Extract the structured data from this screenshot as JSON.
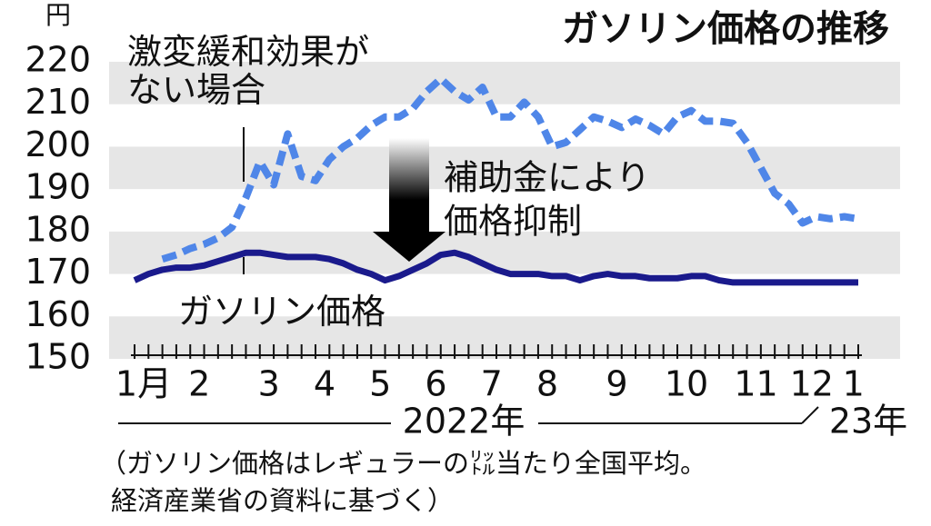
{
  "chart_data": {
    "type": "line",
    "title": "ガソリン価格の推移",
    "y_unit": "円",
    "categories": [
      "1月",
      null,
      null,
      null,
      "2",
      null,
      null,
      null,
      null,
      "3",
      null,
      null,
      null,
      "4",
      null,
      null,
      null,
      "5",
      null,
      null,
      null,
      "6",
      null,
      null,
      null,
      "7",
      null,
      null,
      null,
      "8",
      null,
      null,
      null,
      null,
      "9",
      null,
      null,
      null,
      null,
      "10",
      null,
      null,
      null,
      null,
      "11",
      null,
      null,
      null,
      "12",
      null,
      null,
      "1",
      null
    ],
    "series": [
      {
        "name": "激変緩和効果がない場合",
        "color": "#4f86e8",
        "style": "dashed",
        "values": [
          null,
          null,
          173.5,
          174.5,
          176,
          177,
          178.5,
          181,
          188,
          196.5,
          191,
          203,
          193,
          192,
          197,
          200,
          202,
          205,
          207,
          207,
          209,
          213,
          216,
          213,
          211,
          214,
          207,
          207,
          210.5,
          207,
          200,
          201,
          204,
          207,
          206,
          204.5,
          206.5,
          205,
          203,
          207,
          208.5,
          206,
          206,
          205.5,
          201,
          195,
          189,
          186.5,
          182,
          183.5,
          183,
          183.5,
          183
        ]
      },
      {
        "name": "ガソリン価格",
        "color": "#1a1a8c",
        "style": "solid",
        "values": [
          168.5,
          170,
          171,
          171.5,
          171.5,
          172,
          173,
          174,
          175,
          175,
          174.5,
          174,
          174,
          174,
          173.5,
          172.5,
          171,
          170,
          168.5,
          169.5,
          171,
          172.5,
          174.5,
          175,
          174,
          172.5,
          171,
          170,
          170,
          170,
          169.5,
          169.5,
          168.5,
          169.5,
          170,
          169.5,
          169.5,
          169,
          169,
          169,
          169.5,
          169.5,
          168.5,
          168,
          168,
          168,
          168,
          168,
          168,
          168,
          168,
          168,
          168
        ]
      }
    ],
    "ylim": [
      150,
      220
    ],
    "yticks": [
      150,
      160,
      170,
      180,
      190,
      200,
      210,
      220
    ],
    "grid": true,
    "annotation": [
      "補助金により",
      "価格抑制"
    ],
    "year_labels": [
      "2022年",
      "23年"
    ],
    "note": [
      "（ガソリン価格はレギュラーの㍑当たり全国平均。",
      "経済産業省の資料に基づく）"
    ]
  }
}
